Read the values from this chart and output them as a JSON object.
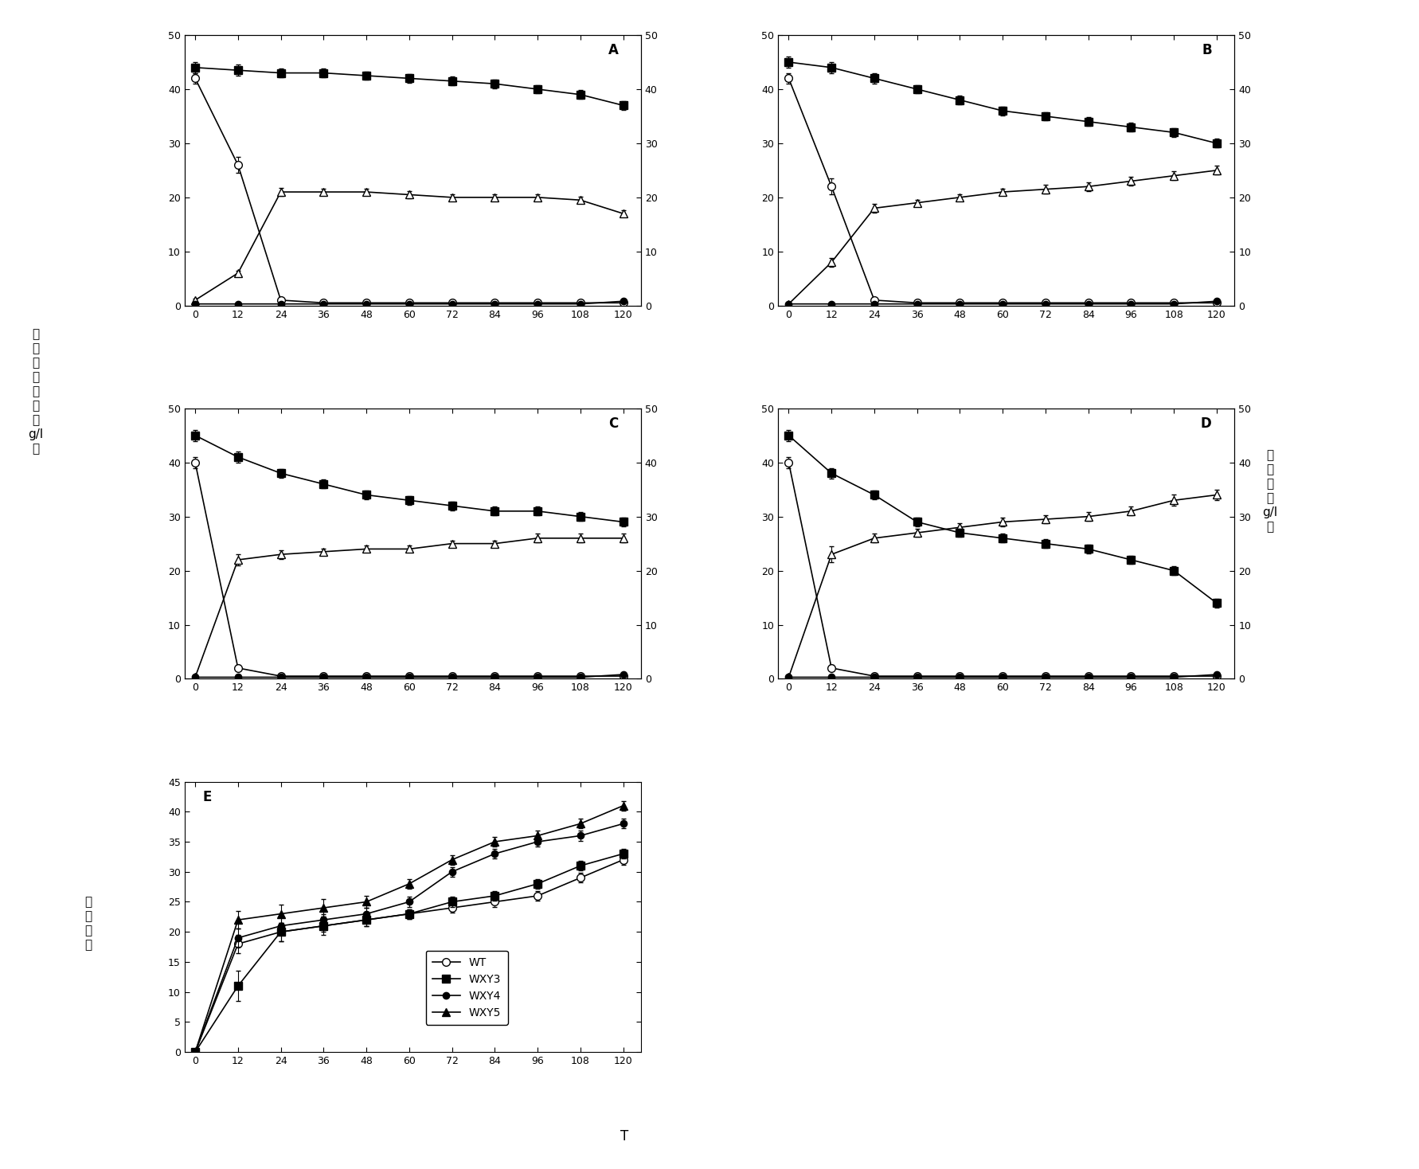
{
  "x_ticks": [
    0,
    12,
    24,
    36,
    48,
    60,
    72,
    84,
    96,
    108,
    120
  ],
  "panels": {
    "A": {
      "sq": [
        44,
        43.5,
        43,
        43,
        42.5,
        42,
        41.5,
        41,
        40,
        39,
        37
      ],
      "sq_e": [
        1.0,
        1.0,
        0.8,
        0.8,
        0.8,
        0.8,
        0.8,
        0.8,
        0.8,
        0.8,
        0.8
      ],
      "co": [
        42,
        26,
        1,
        0.5,
        0.5,
        0.5,
        0.5,
        0.5,
        0.5,
        0.5,
        0.5
      ],
      "co_e": [
        1.0,
        1.5,
        0.3,
        0.2,
        0.2,
        0.2,
        0.2,
        0.2,
        0.2,
        0.2,
        0.2
      ],
      "to": [
        1,
        6,
        21,
        21,
        21,
        20.5,
        20,
        20,
        20,
        19.5,
        17
      ],
      "to_e": [
        0.3,
        0.5,
        0.8,
        0.6,
        0.6,
        0.6,
        0.6,
        0.6,
        0.6,
        0.6,
        0.6
      ],
      "cf": [
        0.3,
        0.3,
        0.3,
        0.3,
        0.3,
        0.3,
        0.3,
        0.3,
        0.3,
        0.3,
        0.8
      ],
      "cf_e": [
        0.1,
        0.1,
        0.1,
        0.1,
        0.1,
        0.1,
        0.1,
        0.1,
        0.1,
        0.1,
        0.2
      ]
    },
    "B": {
      "sq": [
        45,
        44,
        42,
        40,
        38,
        36,
        35,
        34,
        33,
        32,
        30
      ],
      "sq_e": [
        1.0,
        1.0,
        1.0,
        0.8,
        0.8,
        0.8,
        0.8,
        0.8,
        0.8,
        0.8,
        0.8
      ],
      "co": [
        42,
        22,
        1,
        0.5,
        0.5,
        0.5,
        0.5,
        0.5,
        0.5,
        0.5,
        0.5
      ],
      "co_e": [
        1.0,
        1.5,
        0.3,
        0.2,
        0.2,
        0.2,
        0.2,
        0.2,
        0.2,
        0.2,
        0.2
      ],
      "to": [
        0.3,
        8,
        18,
        19,
        20,
        21,
        21.5,
        22,
        23,
        24,
        25
      ],
      "to_e": [
        0.2,
        0.8,
        0.8,
        0.6,
        0.6,
        0.6,
        0.8,
        0.8,
        0.8,
        0.8,
        0.8
      ],
      "cf": [
        0.3,
        0.3,
        0.3,
        0.3,
        0.3,
        0.3,
        0.3,
        0.3,
        0.3,
        0.3,
        0.8
      ],
      "cf_e": [
        0.1,
        0.1,
        0.1,
        0.1,
        0.1,
        0.1,
        0.1,
        0.1,
        0.1,
        0.1,
        0.2
      ]
    },
    "C": {
      "sq": [
        45,
        41,
        38,
        36,
        34,
        33,
        32,
        31,
        31,
        30,
        29
      ],
      "sq_e": [
        1.0,
        1.0,
        0.8,
        0.8,
        0.8,
        0.8,
        0.8,
        0.8,
        0.8,
        0.8,
        0.8
      ],
      "co": [
        40,
        2,
        0.5,
        0.5,
        0.5,
        0.5,
        0.5,
        0.5,
        0.5,
        0.5,
        0.5
      ],
      "co_e": [
        1.0,
        0.5,
        0.2,
        0.2,
        0.2,
        0.2,
        0.2,
        0.2,
        0.2,
        0.2,
        0.2
      ],
      "to": [
        0.3,
        22,
        23,
        23.5,
        24,
        24,
        25,
        25,
        26,
        26,
        26
      ],
      "to_e": [
        0.2,
        1.0,
        0.8,
        0.6,
        0.6,
        0.6,
        0.6,
        0.6,
        0.8,
        0.8,
        0.8
      ],
      "cf": [
        0.3,
        0.3,
        0.3,
        0.3,
        0.3,
        0.3,
        0.3,
        0.3,
        0.3,
        0.3,
        0.8
      ],
      "cf_e": [
        0.1,
        0.1,
        0.1,
        0.1,
        0.1,
        0.1,
        0.1,
        0.1,
        0.1,
        0.1,
        0.2
      ]
    },
    "D": {
      "sq": [
        45,
        38,
        34,
        29,
        27,
        26,
        25,
        24,
        22,
        20,
        14
      ],
      "sq_e": [
        1.0,
        1.0,
        0.8,
        0.8,
        0.8,
        0.8,
        0.8,
        0.8,
        0.8,
        0.8,
        0.8
      ],
      "co": [
        40,
        2,
        0.5,
        0.5,
        0.5,
        0.5,
        0.5,
        0.5,
        0.5,
        0.5,
        0.5
      ],
      "co_e": [
        1.0,
        0.5,
        0.2,
        0.2,
        0.2,
        0.2,
        0.2,
        0.2,
        0.2,
        0.2,
        0.2
      ],
      "to": [
        0.3,
        23,
        26,
        27,
        28,
        29,
        29.5,
        30,
        31,
        33,
        34
      ],
      "to_e": [
        0.2,
        1.5,
        0.8,
        0.8,
        0.8,
        0.8,
        0.8,
        0.8,
        0.8,
        1.0,
        1.0
      ],
      "cf": [
        0.3,
        0.3,
        0.3,
        0.3,
        0.3,
        0.3,
        0.3,
        0.3,
        0.3,
        0.3,
        0.8
      ],
      "cf_e": [
        0.1,
        0.1,
        0.1,
        0.1,
        0.1,
        0.1,
        0.1,
        0.1,
        0.1,
        0.1,
        0.2
      ]
    },
    "E": {
      "co": [
        0,
        18,
        20,
        21,
        22,
        23,
        24,
        25,
        26,
        29,
        32
      ],
      "co_e": [
        0,
        1.5,
        1.5,
        1.0,
        1.0,
        0.8,
        0.8,
        0.8,
        0.8,
        0.8,
        0.8
      ],
      "sq": [
        0,
        11,
        20,
        21,
        22,
        23,
        25,
        26,
        28,
        31,
        33
      ],
      "sq_e": [
        0,
        2.5,
        1.5,
        1.5,
        1.0,
        0.8,
        0.8,
        0.8,
        0.8,
        0.8,
        0.8
      ],
      "cf": [
        0,
        19,
        21,
        22,
        23,
        25,
        30,
        33,
        35,
        36,
        38
      ],
      "cf_e": [
        0,
        1.5,
        1.5,
        1.0,
        1.0,
        0.8,
        0.8,
        0.8,
        0.8,
        0.8,
        0.8
      ],
      "tf": [
        0,
        22,
        23,
        24,
        25,
        28,
        32,
        35,
        36,
        38,
        41
      ],
      "tf_e": [
        0,
        1.5,
        1.5,
        1.5,
        1.0,
        0.8,
        0.8,
        0.8,
        0.8,
        0.8,
        0.8
      ]
    }
  },
  "bg_color": "#ffffff",
  "ms": 7,
  "lw": 1.2,
  "capsize": 2,
  "elw": 0.8,
  "tick_fontsize": 9,
  "label_fontsize": 11,
  "panel_label_fontsize": 12
}
